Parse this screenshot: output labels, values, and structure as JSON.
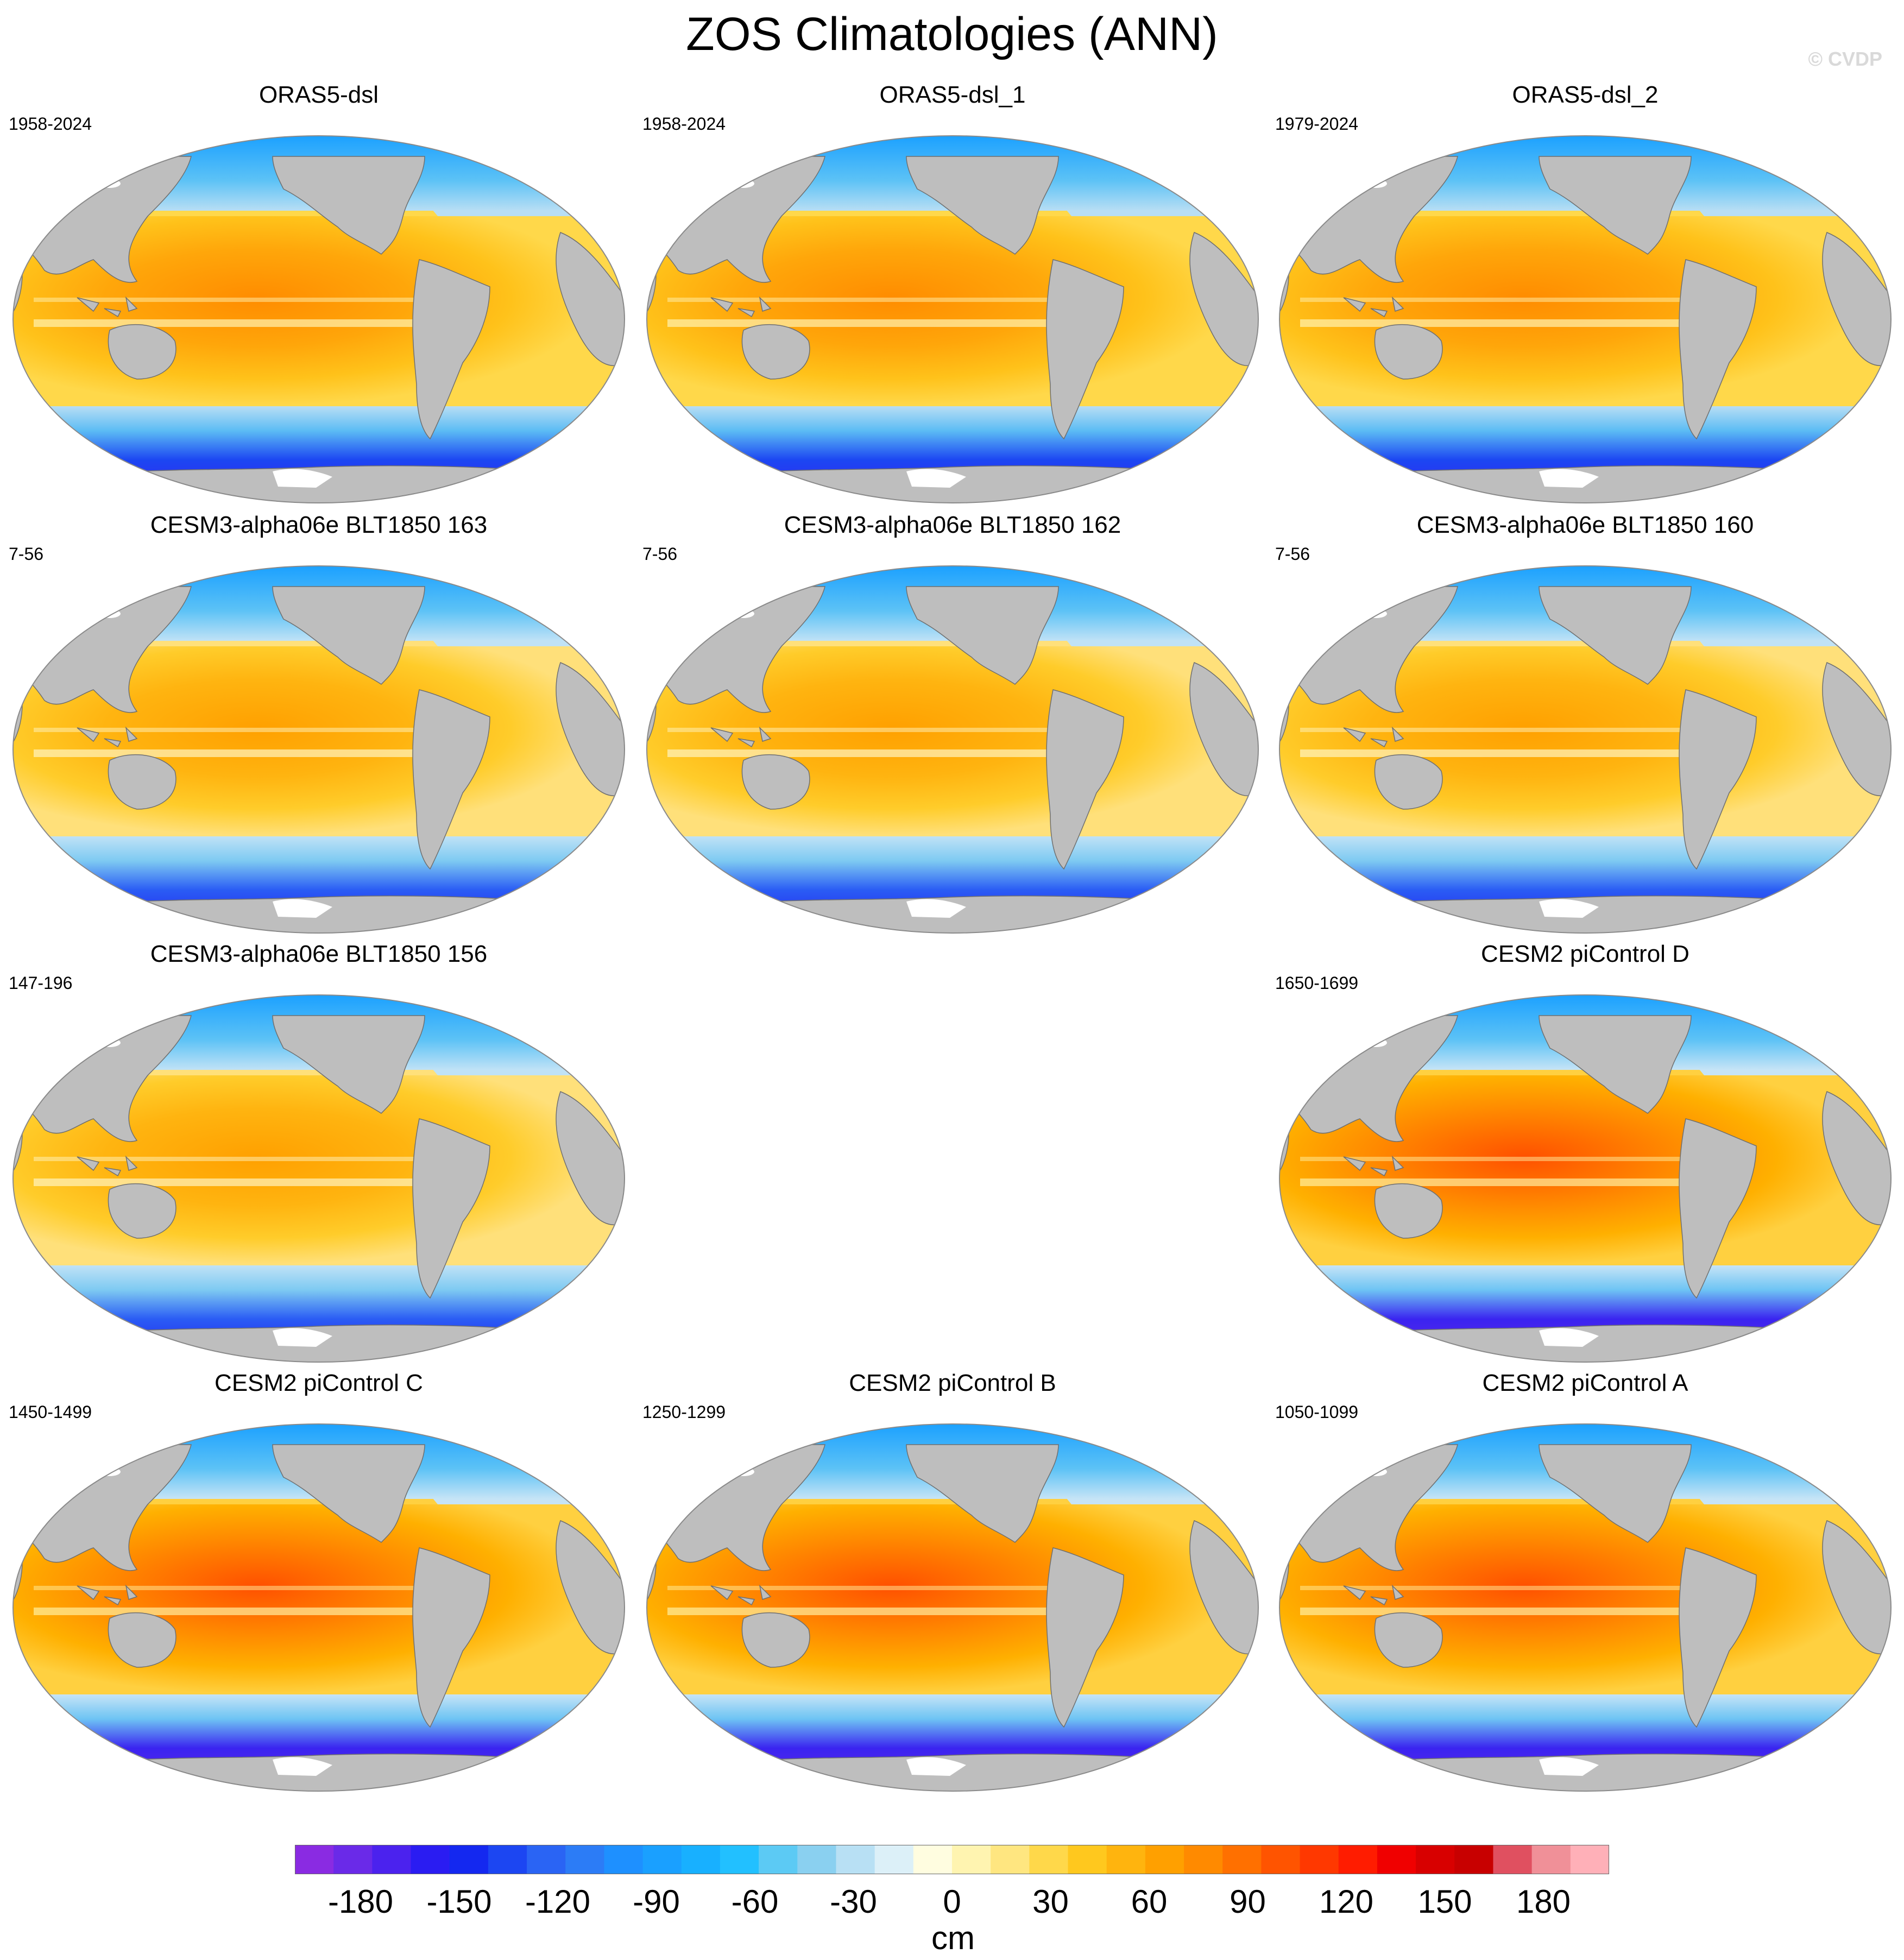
{
  "title": "ZOS Climatologies (ANN)",
  "watermark": "© CVDP",
  "panels": [
    {
      "title": "ORAS5-dsl",
      "years": "1958-2024",
      "row": 0,
      "col": 0,
      "style": "oras"
    },
    {
      "title": "ORAS5-dsl_1",
      "years": "1958-2024",
      "row": 0,
      "col": 1,
      "style": "oras"
    },
    {
      "title": "ORAS5-dsl_2",
      "years": "1979-2024",
      "row": 0,
      "col": 2,
      "style": "oras"
    },
    {
      "title": "CESM3-alpha06e BLT1850 163",
      "years": "7-56",
      "row": 1,
      "col": 0,
      "style": "cesm3"
    },
    {
      "title": "CESM3-alpha06e BLT1850 162",
      "years": "7-56",
      "row": 1,
      "col": 1,
      "style": "cesm3"
    },
    {
      "title": "CESM3-alpha06e BLT1850 160",
      "years": "7-56",
      "row": 1,
      "col": 2,
      "style": "cesm3"
    },
    {
      "title": "CESM3-alpha06e BLT1850 156",
      "years": "147-196",
      "row": 2,
      "col": 0,
      "style": "cesm3"
    },
    {
      "title": "CESM2 piControl D",
      "years": "1650-1699",
      "row": 2,
      "col": 2,
      "style": "cesm2"
    },
    {
      "title": "CESM2 piControl C",
      "years": "1450-1499",
      "row": 3,
      "col": 0,
      "style": "cesm2"
    },
    {
      "title": "CESM2 piControl B",
      "years": "1250-1299",
      "row": 3,
      "col": 1,
      "style": "cesm2"
    },
    {
      "title": "CESM2 piControl A",
      "years": "1050-1099",
      "row": 3,
      "col": 2,
      "style": "cesm2"
    }
  ],
  "colorbar": {
    "unit": "cm",
    "min": -200,
    "max": 200,
    "tick_labels": [
      "-180",
      "-150",
      "-120",
      "-90",
      "-60",
      "-30",
      "0",
      "30",
      "60",
      "90",
      "120",
      "150",
      "180"
    ],
    "tick_values": [
      -180,
      -150,
      -120,
      -90,
      -60,
      -30,
      0,
      30,
      60,
      90,
      120,
      150,
      180
    ],
    "colors": [
      "#8a2be2",
      "#6a2ae8",
      "#4b22ee",
      "#2a1cf2",
      "#1428f0",
      "#1c46f2",
      "#2a64f4",
      "#2c7cf6",
      "#1e90ff",
      "#1aa0ff",
      "#18b0ff",
      "#22c0ff",
      "#5ccaf4",
      "#8ad0f0",
      "#b8e0f4",
      "#dcf0f8",
      "#fffde0",
      "#fff4b0",
      "#ffe680",
      "#ffd84a",
      "#ffc81e",
      "#ffb40e",
      "#ffa000",
      "#ff8a00",
      "#ff7000",
      "#ff5400",
      "#ff3800",
      "#ff1c00",
      "#f00000",
      "#d80000",
      "#c80000",
      "#e05060",
      "#f09098",
      "#ffb0b8"
    ]
  },
  "colors": {
    "land": "#bebebe",
    "sea_ice": "#ffffff",
    "coast": "#6f6f6f"
  }
}
